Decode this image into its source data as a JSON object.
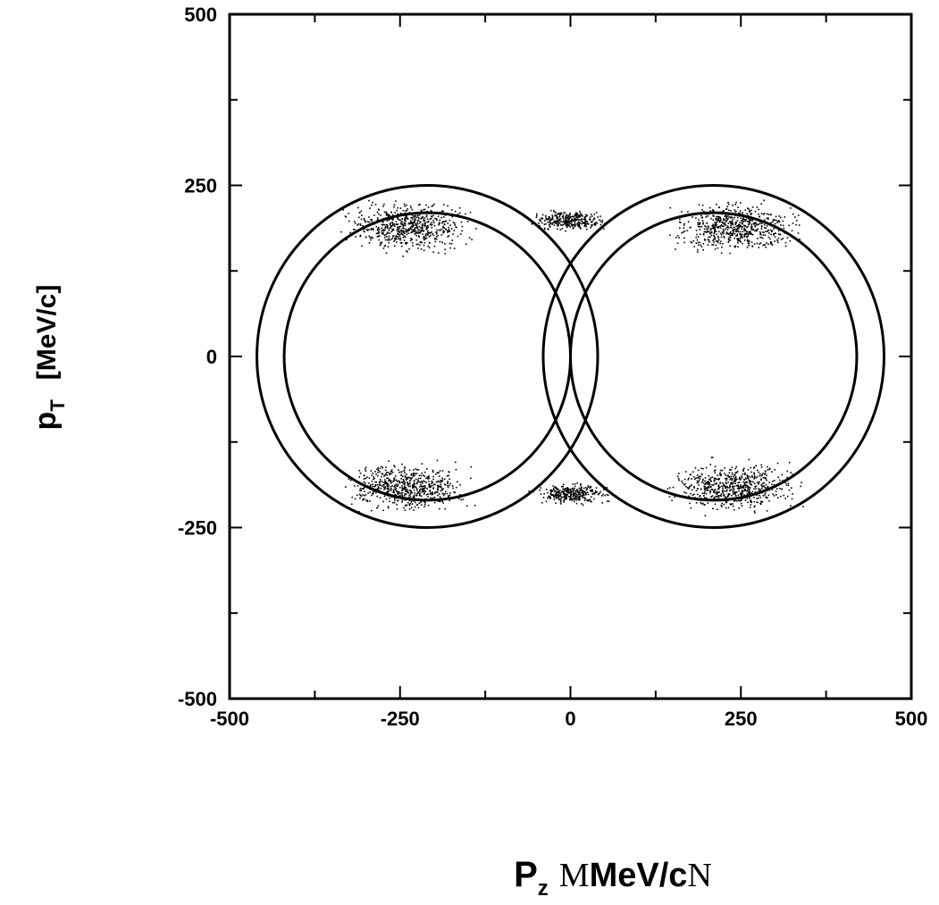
{
  "chart_data": {
    "type": "scatter",
    "title": "",
    "xlabel": {
      "main": "P",
      "sub": "z",
      "bracket_open": "M",
      "unit": "MeV/c",
      "bracket_close": "N"
    },
    "ylabel": {
      "main": "p",
      "sub": "T",
      "unit": "[MeV/c]"
    },
    "xlim": [
      -500,
      500
    ],
    "ylim": [
      -500,
      500
    ],
    "x_ticks": [
      -500,
      -250,
      0,
      250,
      500
    ],
    "y_ticks": [
      -500,
      -250,
      0,
      250,
      500
    ],
    "x_tick_labels": [
      "-500",
      "-250",
      "0",
      "250",
      "500"
    ],
    "y_tick_labels": [
      "-500",
      "-250",
      "0",
      "250",
      "500"
    ],
    "minor_tick_step": 125,
    "grid": false,
    "circles": [
      {
        "name": "outer-left",
        "center": [
          -210,
          0
        ],
        "radius": 250
      },
      {
        "name": "outer-right",
        "center": [
          210,
          0
        ],
        "radius": 250
      },
      {
        "name": "inner-left",
        "center": [
          -210,
          0
        ],
        "radius": 210
      },
      {
        "name": "inner-right",
        "center": [
          210,
          0
        ],
        "radius": 210
      }
    ],
    "point_clusters": [
      {
        "center": [
          -240,
          190
        ],
        "spread": [
          75,
          30
        ],
        "count": 650
      },
      {
        "center": [
          240,
          190
        ],
        "spread": [
          75,
          30
        ],
        "count": 650
      },
      {
        "center": [
          -240,
          -190
        ],
        "spread": [
          75,
          30
        ],
        "count": 650
      },
      {
        "center": [
          240,
          -190
        ],
        "spread": [
          75,
          30
        ],
        "count": 650
      },
      {
        "center": [
          0,
          200
        ],
        "spread": [
          45,
          12
        ],
        "count": 320
      },
      {
        "center": [
          0,
          -200
        ],
        "spread": [
          45,
          12
        ],
        "count": 320
      }
    ],
    "colors": {
      "points": "#000000",
      "lines": "#000000"
    }
  }
}
